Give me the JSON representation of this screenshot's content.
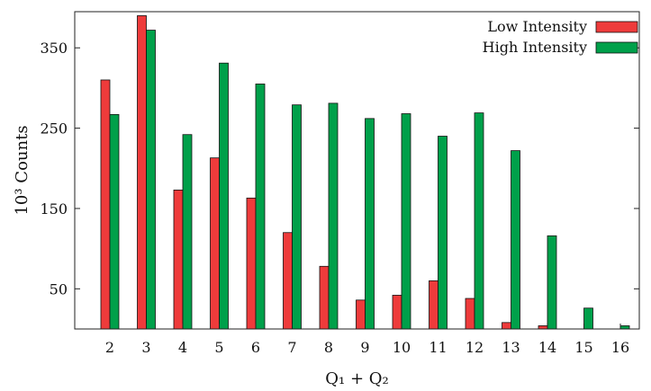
{
  "chart_data": {
    "type": "bar",
    "title": "",
    "xlabel": "Q₁ + Q₂",
    "ylabel": "10³ Counts",
    "categories": [
      "2",
      "3",
      "4",
      "5",
      "6",
      "7",
      "8",
      "9",
      "10",
      "11",
      "12",
      "13",
      "14",
      "15",
      "16"
    ],
    "series": [
      {
        "name": "Low Intensity",
        "color": "#ee3b3b",
        "values": [
          310,
          390,
          173,
          213,
          163,
          120,
          78,
          36,
          42,
          60,
          38,
          8,
          4,
          0,
          0
        ]
      },
      {
        "name": "High Intensity",
        "color": "#00a04a",
        "values": [
          267,
          372,
          242,
          331,
          305,
          279,
          281,
          262,
          268,
          240,
          269,
          222,
          116,
          26,
          4
        ]
      }
    ],
    "ylim": [
      0,
      395
    ],
    "yticks": [
      50,
      150,
      250,
      350
    ],
    "grid": false,
    "legend_position": "top-right"
  }
}
